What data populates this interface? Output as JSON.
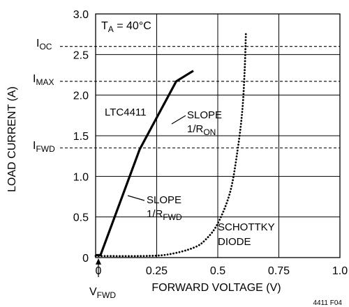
{
  "chart_data": {
    "type": "line",
    "x_label": "FORWARD VOLTAGE (V)",
    "y_label": "LOAD CURRENT (A)",
    "x_range": [
      0,
      1.0
    ],
    "y_range": [
      0,
      3.0
    ],
    "x_ticks": [
      "0",
      "0.25",
      "0.5",
      "0.75",
      "1.0"
    ],
    "x_tick_values": [
      0,
      0.25,
      0.5,
      0.75,
      1.0
    ],
    "y_ticks": [
      "0",
      "0.5",
      "1.0",
      "1.5",
      "2.0",
      "2.5",
      "3.0"
    ],
    "y_tick_values": [
      0,
      0.5,
      1.0,
      1.5,
      2.0,
      2.5,
      3.0
    ],
    "grid": true,
    "condition": {
      "main": "T",
      "sub": "A",
      "rest": " = 40°C"
    },
    "y_markers": [
      {
        "main": "I",
        "sub": "OC",
        "value": 2.6
      },
      {
        "main": "I",
        "sub": "MAX",
        "value": 2.17
      },
      {
        "main": "I",
        "sub": "FWD",
        "value": 1.35
      }
    ],
    "x_marker": {
      "main": "V",
      "sub": "FWD",
      "value": 0.02
    },
    "series": [
      {
        "name": "LTC4411",
        "style": "solid",
        "x": [
          0.0,
          0.02,
          0.18,
          0.33,
          0.4
        ],
        "y": [
          0.03,
          0.03,
          1.33,
          2.17,
          2.3
        ]
      },
      {
        "name": "SCHOTTKY DIODE",
        "style": "dotted",
        "x": [
          0.0,
          0.2,
          0.3,
          0.4,
          0.45,
          0.5,
          0.55,
          0.58,
          0.6,
          0.61,
          0.615
        ],
        "y": [
          0.02,
          0.02,
          0.04,
          0.12,
          0.22,
          0.42,
          0.8,
          1.3,
          1.8,
          2.3,
          2.77
        ]
      }
    ],
    "annotations": [
      {
        "lines": [
          "SLOPE",
          "1/R"
        ],
        "sub": "ON"
      },
      {
        "lines": [
          "SLOPE",
          "1/R"
        ],
        "sub": "FWD"
      }
    ],
    "series_labels": [
      "LTC4411",
      "SCHOTTKY",
      "DIODE"
    ],
    "figure_id": "4411 F04"
  }
}
